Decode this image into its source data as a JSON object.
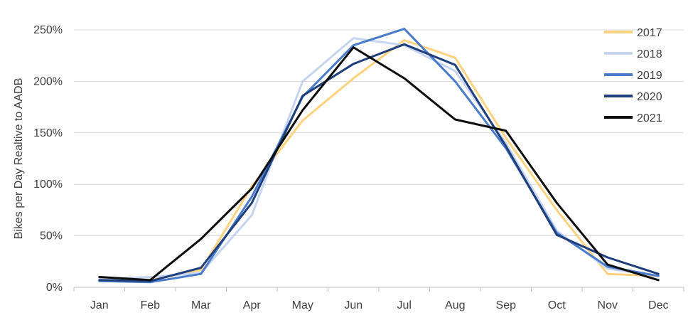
{
  "chart_data": {
    "type": "line",
    "title": "",
    "xlabel": "",
    "ylabel": "Bikes per Day Realtive to AADB",
    "categories": [
      "Jan",
      "Feb",
      "Mar",
      "Apr",
      "May",
      "Jun",
      "Jul",
      "Aug",
      "Sep",
      "Oct",
      "Nov",
      "Dec"
    ],
    "ylim": [
      0,
      250
    ],
    "yticks": [
      0,
      50,
      100,
      150,
      200,
      250
    ],
    "ytick_labels": [
      "0%",
      "50%",
      "100%",
      "150%",
      "200%",
      "250%"
    ],
    "grid": true,
    "legend_position": "top-right",
    "series": [
      {
        "name": "2017",
        "color": "#FFD27F",
        "values": [
          6,
          7,
          17,
          98,
          162,
          203,
          240,
          223,
          145,
          75,
          13,
          11
        ]
      },
      {
        "name": "2018",
        "color": "#C5D5F0",
        "values": [
          8,
          10,
          14,
          70,
          200,
          242,
          235,
          210,
          140,
          55,
          18,
          11
        ]
      },
      {
        "name": "2019",
        "color": "#4A7CCB",
        "values": [
          6,
          5,
          13,
          88,
          185,
          235,
          251,
          200,
          135,
          53,
          20,
          11
        ]
      },
      {
        "name": "2020",
        "color": "#1F3E7C",
        "values": [
          7,
          6,
          19,
          82,
          186,
          217,
          236,
          216,
          137,
          51,
          29,
          13
        ]
      },
      {
        "name": "2021",
        "color": "#0D0D0D",
        "values": [
          10,
          7,
          47,
          96,
          172,
          233,
          203,
          163,
          152,
          82,
          22,
          7
        ]
      }
    ]
  }
}
